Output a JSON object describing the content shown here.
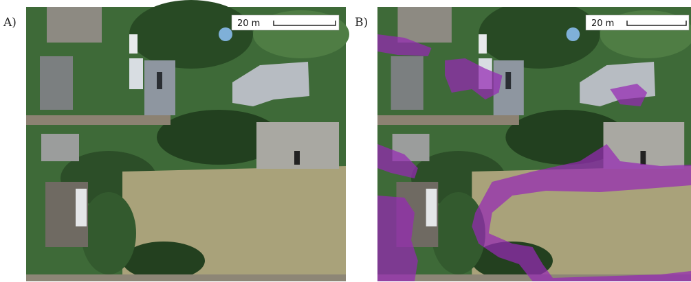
{
  "panels": [
    {
      "label": "A)",
      "scale_label": "20 m"
    },
    {
      "label": "B)",
      "scale_label": "20 m"
    }
  ]
}
